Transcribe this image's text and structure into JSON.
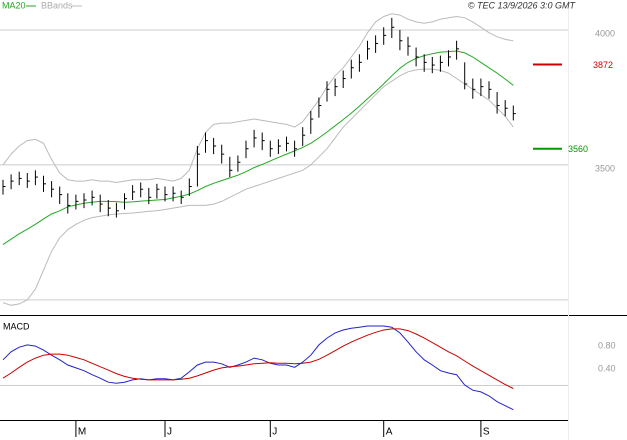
{
  "chart_data": [
    {
      "type": "hlc",
      "source": "© TEC 13/9/2026 3:0 GMT",
      "high": [
        3445,
        3465,
        3475,
        3470,
        3480,
        3460,
        3440,
        3420,
        3395,
        3390,
        3395,
        3405,
        3390,
        3370,
        3360,
        3395,
        3425,
        3435,
        3415,
        3430,
        3420,
        3420,
        3405,
        3450,
        3570,
        3620,
        3600,
        3575,
        3530,
        3535,
        3590,
        3630,
        3620,
        3590,
        3595,
        3605,
        3590,
        3640,
        3700,
        3750,
        3810,
        3820,
        3850,
        3890,
        3910,
        3960,
        3980,
        4010,
        4045,
        4000,
        3975,
        3935,
        3910,
        3900,
        3905,
        3925,
        3960,
        3880,
        3820,
        3820,
        3810,
        3770,
        3740,
        3720
      ],
      "low": [
        3390,
        3410,
        3425,
        3415,
        3425,
        3400,
        3380,
        3355,
        3320,
        3335,
        3340,
        3350,
        3325,
        3310,
        3305,
        3335,
        3370,
        3380,
        3355,
        3375,
        3365,
        3365,
        3355,
        3385,
        3420,
        3545,
        3540,
        3505,
        3455,
        3475,
        3525,
        3565,
        3555,
        3530,
        3540,
        3550,
        3530,
        3570,
        3615,
        3675,
        3735,
        3755,
        3785,
        3820,
        3845,
        3890,
        3915,
        3945,
        3970,
        3925,
        3905,
        3865,
        3845,
        3840,
        3845,
        3865,
        3890,
        3780,
        3745,
        3755,
        3745,
        3690,
        3680,
        3665
      ],
      "close": [
        3420,
        3440,
        3450,
        3440,
        3455,
        3430,
        3410,
        3390,
        3350,
        3365,
        3370,
        3380,
        3355,
        3340,
        3330,
        3375,
        3400,
        3410,
        3380,
        3410,
        3390,
        3395,
        3380,
        3420,
        3540,
        3590,
        3570,
        3540,
        3480,
        3510,
        3560,
        3600,
        3590,
        3560,
        3570,
        3580,
        3560,
        3610,
        3670,
        3720,
        3780,
        3790,
        3820,
        3860,
        3880,
        3930,
        3950,
        3980,
        4010,
        3960,
        3940,
        3900,
        3880,
        3870,
        3880,
        3900,
        3930,
        3800,
        3780,
        3790,
        3780,
        3720,
        3710,
        3690
      ],
      "bar_color": "#000000",
      "series": [
        {
          "name": "MA20",
          "color": "#22aa22",
          "values": [
            3205,
            3225,
            3245,
            3262,
            3280,
            3300,
            3318,
            3330,
            3345,
            3352,
            3358,
            3362,
            3365,
            3365,
            3364,
            3362,
            3363,
            3366,
            3368,
            3370,
            3372,
            3378,
            3384,
            3392,
            3405,
            3420,
            3432,
            3442,
            3452,
            3462,
            3475,
            3490,
            3502,
            3515,
            3528,
            3540,
            3552,
            3565,
            3580,
            3600,
            3622,
            3645,
            3668,
            3692,
            3718,
            3745,
            3772,
            3800,
            3830,
            3858,
            3880,
            3895,
            3905,
            3912,
            3918,
            3920,
            3922,
            3915,
            3900,
            3880,
            3860,
            3840,
            3818,
            3795
          ]
        },
        {
          "name": "BBands",
          "color": "#bbbbbb",
          "values": [
            3500,
            3540,
            3570,
            3590,
            3595,
            3580,
            3520,
            3470,
            3445,
            3440,
            3440,
            3445,
            3440,
            3440,
            3435,
            3440,
            3445,
            3445,
            3445,
            3450,
            3445,
            3440,
            3450,
            3480,
            3560,
            3620,
            3650,
            3655,
            3655,
            3660,
            3665,
            3670,
            3665,
            3660,
            3655,
            3650,
            3640,
            3660,
            3700,
            3740,
            3790,
            3830,
            3860,
            3900,
            3940,
            3990,
            4030,
            4050,
            4060,
            4055,
            4040,
            4030,
            4025,
            4030,
            4040,
            4045,
            4050,
            4045,
            4030,
            4010,
            3990,
            3975,
            3965,
            3960
          ],
          "lower": [
            2990,
            2980,
            2985,
            3000,
            3040,
            3110,
            3180,
            3230,
            3260,
            3280,
            3295,
            3305,
            3310,
            3315,
            3318,
            3320,
            3322,
            3325,
            3328,
            3330,
            3335,
            3340,
            3345,
            3350,
            3350,
            3350,
            3355,
            3365,
            3380,
            3395,
            3410,
            3420,
            3430,
            3440,
            3450,
            3460,
            3470,
            3480,
            3500,
            3530,
            3560,
            3600,
            3640,
            3670,
            3700,
            3730,
            3760,
            3790,
            3810,
            3830,
            3845,
            3852,
            3855,
            3855,
            3850,
            3840,
            3820,
            3800,
            3780,
            3760,
            3740,
            3710,
            3680,
            3640
          ]
        }
      ],
      "levels": [
        {
          "value": 3872,
          "color": "#cc0000"
        },
        {
          "value": 3560,
          "color": "#009900"
        }
      ],
      "ylim": [
        2944,
        4111
      ],
      "yticks": [
        3500,
        4000
      ],
      "gridlines": [
        3000,
        3500,
        4000
      ]
    },
    {
      "type": "line",
      "title": "MACD",
      "categories": [
        null,
        null,
        null,
        null,
        null,
        null,
        null,
        null,
        null,
        "M",
        null,
        null,
        null,
        null,
        null,
        null,
        null,
        null,
        null,
        null,
        "J",
        null,
        null,
        null,
        null,
        null,
        null,
        null,
        null,
        null,
        null,
        null,
        null,
        "J",
        null,
        null,
        null,
        null,
        null,
        null,
        null,
        null,
        null,
        null,
        null,
        null,
        null,
        "A",
        null,
        null,
        null,
        null,
        null,
        null,
        null,
        null,
        null,
        null,
        null,
        "S",
        null,
        null,
        null,
        null
      ],
      "series": [
        {
          "color": "#2222cc",
          "values": [
            0.56,
            0.7,
            0.78,
            0.82,
            0.8,
            0.73,
            0.64,
            0.56,
            0.47,
            0.42,
            0.37,
            0.3,
            0.24,
            0.17,
            0.15,
            0.17,
            0.21,
            0.23,
            0.21,
            0.23,
            0.23,
            0.21,
            0.24,
            0.35,
            0.47,
            0.52,
            0.52,
            0.49,
            0.43,
            0.47,
            0.52,
            0.59,
            0.56,
            0.5,
            0.47,
            0.47,
            0.43,
            0.52,
            0.64,
            0.82,
            0.94,
            1.03,
            1.08,
            1.11,
            1.13,
            1.15,
            1.15,
            1.15,
            1.13,
            1.03,
            0.87,
            0.7,
            0.56,
            0.47,
            0.37,
            0.33,
            0.3,
            0.12,
            0.03,
            0.0,
            -0.07,
            -0.17,
            -0.24,
            -0.31
          ]
        },
        {
          "color": "#cc0000",
          "values": [
            0.24,
            0.33,
            0.43,
            0.52,
            0.59,
            0.64,
            0.66,
            0.66,
            0.64,
            0.6,
            0.56,
            0.5,
            0.44,
            0.38,
            0.32,
            0.27,
            0.24,
            0.22,
            0.21,
            0.21,
            0.21,
            0.21,
            0.22,
            0.24,
            0.28,
            0.33,
            0.38,
            0.42,
            0.44,
            0.45,
            0.47,
            0.49,
            0.5,
            0.51,
            0.5,
            0.5,
            0.49,
            0.5,
            0.52,
            0.57,
            0.64,
            0.72,
            0.8,
            0.87,
            0.93,
            0.99,
            1.04,
            1.08,
            1.1,
            1.1,
            1.07,
            1.01,
            0.94,
            0.86,
            0.78,
            0.7,
            0.63,
            0.54,
            0.45,
            0.37,
            0.29,
            0.21,
            0.13,
            0.06
          ]
        }
      ],
      "ylim": [
        -0.49,
        1.29
      ],
      "yticks": [
        {
          "value": 0.8,
          "label": "0.80"
        },
        {
          "value": 0.4,
          "label": "0.40"
        }
      ]
    }
  ]
}
